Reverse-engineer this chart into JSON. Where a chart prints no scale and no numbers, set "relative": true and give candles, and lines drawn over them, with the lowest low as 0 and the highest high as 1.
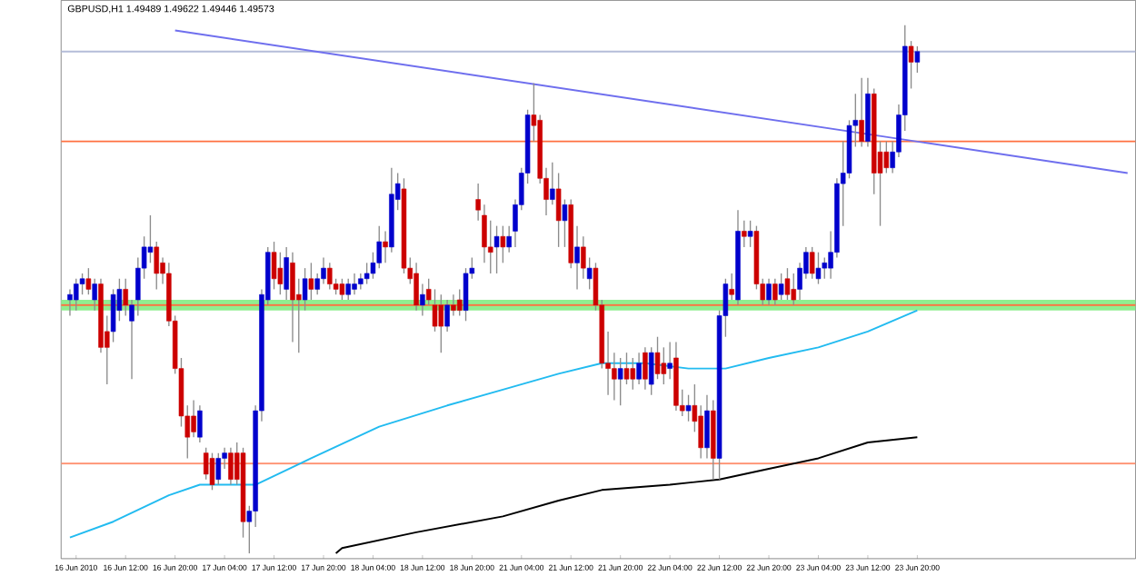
{
  "chart_data": {
    "type": "candlestick",
    "title": "GBPUSD,H1 1.49489 1.49622 1.49446 1.49573",
    "relative": true,
    "categories": [
      null,
      "16 Jun 2010",
      null,
      null,
      null,
      null,
      null,
      null,
      null,
      "16 Jun 12:00",
      null,
      null,
      null,
      null,
      null,
      null,
      null,
      "16 Jun 20:00",
      null,
      null,
      null,
      null,
      null,
      null,
      null,
      "17 Jun 04:00",
      null,
      null,
      null,
      null,
      null,
      null,
      null,
      "17 Jun 12:00",
      null,
      null,
      null,
      null,
      null,
      null,
      null,
      "17 Jun 20:00",
      null,
      null,
      null,
      null,
      null,
      null,
      null,
      "18 Jun 04:00",
      null,
      null,
      null,
      null,
      null,
      null,
      null,
      "18 Jun 12:00",
      null,
      null,
      null,
      null,
      null,
      null,
      null,
      "18 Jun 20:00",
      null,
      null,
      null,
      null,
      null,
      null,
      null,
      "21 Jun 04:00",
      null,
      null,
      null,
      null,
      null,
      null,
      null,
      "21 Jun 12:00",
      null,
      null,
      null,
      null,
      null,
      null,
      null,
      "21 Jun 20:00",
      null,
      null,
      null,
      null,
      null,
      null,
      null,
      "22 Jun 04:00",
      null,
      null,
      null,
      null,
      null,
      null,
      null,
      "22 Jun 12:00",
      null,
      null,
      null,
      null,
      null,
      null,
      null,
      "22 Jun 20:00",
      null,
      null,
      null,
      null,
      null,
      null,
      null,
      "23 Jun 04:00",
      null,
      null,
      null,
      null,
      null,
      null,
      null,
      "23 Jun 12:00",
      null,
      null,
      null,
      null,
      null,
      null,
      null,
      "23 Jun 20:00",
      null,
      null,
      null,
      null,
      null,
      null,
      null,
      null,
      null,
      null,
      null,
      null,
      null,
      null,
      null,
      null,
      null,
      null,
      null,
      null,
      null,
      null,
      null,
      null,
      null,
      null,
      null,
      null,
      null,
      null,
      null,
      null,
      null,
      null
    ],
    "colors": [
      "#0000cc",
      "#0000cc",
      "#0000cc",
      "#cc0000",
      "#0000cc",
      "#cc0000",
      "#cc0000",
      "#0000cc",
      "#0000cc",
      "#cc0000",
      "#0000cc",
      "#0000cc",
      "#0000cc",
      "#0000cc",
      "#cc0000",
      "#cc0000",
      "#cc0000",
      "#cc0000",
      "#cc0000",
      "#cc0000",
      "#cc0000",
      "#0000cc",
      "#cc0000",
      "#cc0000",
      "#0000cc",
      "#0000cc",
      "#cc0000",
      "#cc0000",
      "#cc0000",
      "#0000cc",
      "#0000cc",
      "#0000cc",
      "#0000cc",
      "#cc0000",
      "#cc0000",
      "#0000cc",
      "#cc0000",
      "#cc0000",
      "#0000cc",
      "#cc0000",
      "#0000cc",
      "#0000cc",
      "#cc0000",
      "#cc0000",
      "#cc0000",
      "#0000cc",
      "#0000cc",
      "#0000cc",
      "#0000cc",
      "#0000cc",
      "#0000cc",
      "#cc0000",
      "#0000cc",
      "#0000cc",
      "#cc0000",
      "#cc0000",
      "#cc0000",
      "#0000cc",
      "#cc0000",
      "#cc0000",
      "#cc0000",
      "#0000cc",
      "#cc0000",
      "#cc0000",
      "#0000cc",
      "#0000cc",
      "#cc0000",
      "#cc0000",
      "#cc0000",
      "#0000cc",
      "#cc0000",
      "#0000cc",
      "#0000cc",
      "#0000cc",
      "#0000cc",
      "#cc0000",
      "#cc0000",
      "#cc0000",
      "#0000cc",
      "#cc0000",
      "#0000cc",
      "#cc0000",
      "#0000cc",
      "#cc0000",
      "#0000cc",
      "#cc0000",
      "#cc0000",
      "#cc0000",
      "#cc0000",
      "#0000cc",
      "#cc0000",
      "#cc0000",
      "#0000cc",
      "#cc0000",
      "#0000cc",
      "#cc0000",
      "#cc0000",
      "#0000cc",
      "#cc0000",
      "#cc0000",
      "#0000cc",
      "#cc0000",
      "#cc0000",
      "#0000cc",
      "#cc0000",
      "#0000cc",
      "#0000cc",
      "#cc0000",
      "#0000cc",
      "#cc0000",
      "#0000cc",
      "#cc0000",
      "#cc0000",
      "#0000cc",
      "#cc0000",
      "#0000cc",
      "#cc0000",
      "#cc0000",
      "#0000cc",
      "#0000cc",
      "#cc0000",
      "#0000cc",
      "#0000cc",
      "#0000cc",
      "#0000cc",
      "#0000cc",
      "#0000cc",
      "#0000cc",
      "#cc0000",
      "#0000cc",
      "#cc0000",
      "#cc0000",
      "#cc0000",
      "#0000cc",
      "#0000cc",
      "#0000cc",
      "#cc0000",
      "#0000cc",
      null,
      null,
      null,
      null,
      null,
      null,
      null,
      null,
      null,
      null,
      null,
      null,
      null,
      null,
      null,
      null,
      null,
      null,
      null,
      null,
      null,
      null,
      null,
      null,
      null,
      null,
      null,
      null,
      null,
      null,
      null,
      null,
      null,
      null
    ],
    "ohlc": [
      [
        0.48,
        0.5,
        0.45,
        0.49
      ],
      [
        0.48,
        0.52,
        0.46,
        0.51
      ],
      [
        0.51,
        0.53,
        0.49,
        0.52
      ],
      [
        0.52,
        0.54,
        0.49,
        0.5
      ],
      [
        0.48,
        0.52,
        0.46,
        0.51
      ],
      [
        0.51,
        0.52,
        0.38,
        0.39
      ],
      [
        0.42,
        0.45,
        0.32,
        0.39
      ],
      [
        0.42,
        0.5,
        0.4,
        0.49
      ],
      [
        0.46,
        0.52,
        0.44,
        0.5
      ],
      [
        0.5,
        0.52,
        0.45,
        0.47
      ],
      [
        0.44,
        0.48,
        0.33,
        0.47
      ],
      [
        0.48,
        0.56,
        0.45,
        0.54
      ],
      [
        0.54,
        0.6,
        0.52,
        0.58
      ],
      [
        0.57,
        0.64,
        0.55,
        0.58
      ],
      [
        0.58,
        0.59,
        0.5,
        0.53
      ],
      [
        0.55,
        0.56,
        0.51,
        0.53
      ],
      [
        0.53,
        0.55,
        0.43,
        0.44
      ],
      [
        0.44,
        0.45,
        0.34,
        0.35
      ],
      [
        0.35,
        0.37,
        0.24,
        0.26
      ],
      [
        0.26,
        0.28,
        0.18,
        0.22
      ],
      [
        0.26,
        0.29,
        0.22,
        0.23
      ],
      [
        0.22,
        0.28,
        0.21,
        0.27
      ],
      [
        0.19,
        0.2,
        0.14,
        0.15
      ],
      [
        0.18,
        0.19,
        0.12,
        0.13
      ],
      [
        0.14,
        0.19,
        0.13,
        0.18
      ],
      [
        0.18,
        0.2,
        0.16,
        0.19
      ],
      [
        0.19,
        0.2,
        0.13,
        0.14
      ],
      [
        0.19,
        0.21,
        0.13,
        0.14
      ],
      [
        0.19,
        0.2,
        0.03,
        0.06
      ],
      [
        0.06,
        0.09,
        0,
        0.08
      ],
      [
        0.08,
        0.28,
        0.05,
        0.27
      ],
      [
        0.27,
        0.5,
        0.25,
        0.49
      ],
      [
        0.48,
        0.58,
        0.47,
        0.57
      ],
      [
        0.57,
        0.59,
        0.5,
        0.52
      ],
      [
        0.54,
        0.57,
        0.49,
        0.51
      ],
      [
        0.5,
        0.58,
        0.48,
        0.56
      ],
      [
        0.55,
        0.57,
        0.4,
        0.48
      ],
      [
        0.49,
        0.52,
        0.38,
        0.48
      ],
      [
        0.48,
        0.54,
        0.46,
        0.52
      ],
      [
        0.52,
        0.55,
        0.48,
        0.5
      ],
      [
        0.5,
        0.53,
        0.49,
        0.52
      ],
      [
        0.52,
        0.56,
        0.51,
        0.54
      ],
      [
        0.54,
        0.55,
        0.5,
        0.51
      ],
      [
        0.51,
        0.52,
        0.49,
        0.5
      ],
      [
        0.51,
        0.52,
        0.48,
        0.49
      ],
      [
        0.49,
        0.52,
        0.48,
        0.51
      ],
      [
        0.5,
        0.53,
        0.49,
        0.51
      ],
      [
        0.51,
        0.53,
        0.5,
        0.52
      ],
      [
        0.52,
        0.55,
        0.51,
        0.53
      ],
      [
        0.53,
        0.57,
        0.52,
        0.55
      ],
      [
        0.55,
        0.62,
        0.54,
        0.59
      ],
      [
        0.59,
        0.61,
        0.55,
        0.58
      ],
      [
        0.58,
        0.73,
        0.57,
        0.68
      ],
      [
        0.67,
        0.72,
        0.65,
        0.7
      ],
      [
        0.69,
        0.71,
        0.53,
        0.54
      ],
      [
        0.54,
        0.56,
        0.51,
        0.52
      ],
      [
        0.53,
        0.55,
        0.46,
        0.47
      ],
      [
        0.47,
        0.51,
        0.45,
        0.49
      ],
      [
        0.5,
        0.52,
        0.47,
        0.48
      ],
      [
        0.47,
        0.5,
        0.42,
        0.43
      ],
      [
        0.47,
        0.49,
        0.38,
        0.43
      ],
      [
        0.43,
        0.48,
        0.42,
        0.47
      ],
      [
        0.47,
        0.49,
        0.45,
        0.46
      ],
      [
        0.48,
        0.5,
        0.45,
        0.46
      ],
      [
        0.46,
        0.54,
        0.44,
        0.53
      ],
      [
        0.53,
        0.56,
        0.52,
        0.54
      ],
      [
        0.67,
        0.7,
        0.63,
        0.65
      ],
      [
        0.64,
        0.66,
        0.55,
        0.58
      ],
      [
        0.58,
        0.63,
        0.53,
        0.57
      ],
      [
        0.58,
        0.62,
        0.53,
        0.6
      ],
      [
        0.6,
        0.62,
        0.55,
        0.58
      ],
      [
        0.58,
        0.62,
        0.57,
        0.6
      ],
      [
        0.61,
        0.67,
        0.58,
        0.66
      ],
      [
        0.66,
        0.73,
        0.65,
        0.72
      ],
      [
        0.72,
        0.84,
        0.7,
        0.83
      ],
      [
        0.83,
        0.89,
        0.78,
        0.81
      ],
      [
        0.82,
        0.83,
        0.7,
        0.71
      ],
      [
        0.71,
        0.73,
        0.64,
        0.67
      ],
      [
        0.67,
        0.74,
        0.66,
        0.69
      ],
      [
        0.69,
        0.72,
        0.58,
        0.63
      ],
      [
        0.63,
        0.67,
        0.58,
        0.66
      ],
      [
        0.66,
        0.67,
        0.54,
        0.55
      ],
      [
        0.55,
        0.62,
        0.5,
        0.58
      ],
      [
        0.58,
        0.6,
        0.52,
        0.54
      ],
      [
        0.52,
        0.56,
        0.5,
        0.54
      ],
      [
        0.54,
        0.55,
        0.46,
        0.47
      ],
      [
        0.47,
        0.48,
        0.35,
        0.36
      ],
      [
        0.36,
        0.42,
        0.3,
        0.35
      ],
      [
        0.35,
        0.38,
        0.29,
        0.33
      ],
      [
        0.33,
        0.37,
        0.28,
        0.35
      ],
      [
        0.35,
        0.38,
        0.32,
        0.33
      ],
      [
        0.35,
        0.37,
        0.31,
        0.33
      ],
      [
        0.33,
        0.38,
        0.32,
        0.36
      ],
      [
        0.38,
        0.39,
        0.31,
        0.33
      ],
      [
        0.32,
        0.39,
        0.3,
        0.38
      ],
      [
        0.38,
        0.41,
        0.33,
        0.34
      ],
      [
        0.36,
        0.39,
        0.32,
        0.34
      ],
      [
        0.35,
        0.4,
        0.33,
        0.36
      ],
      [
        0.37,
        0.4,
        0.27,
        0.28
      ],
      [
        0.28,
        0.31,
        0.26,
        0.27
      ],
      [
        0.27,
        0.3,
        0.25,
        0.28
      ],
      [
        0.28,
        0.32,
        0.23,
        0.25
      ],
      [
        0.26,
        0.28,
        0.18,
        0.2
      ],
      [
        0.2,
        0.3,
        0.18,
        0.27
      ],
      [
        0.27,
        0.29,
        0.14,
        0.18
      ],
      [
        0.18,
        0.46,
        0.14,
        0.45
      ],
      [
        0.45,
        0.52,
        0.41,
        0.51
      ],
      [
        0.5,
        0.53,
        0.48,
        0.49
      ],
      [
        0.48,
        0.65,
        0.47,
        0.61
      ],
      [
        0.61,
        0.63,
        0.58,
        0.6
      ],
      [
        0.6,
        0.63,
        0.58,
        0.61
      ],
      [
        0.61,
        0.62,
        0.5,
        0.51
      ],
      [
        0.51,
        0.52,
        0.47,
        0.48
      ],
      [
        0.48,
        0.52,
        0.47,
        0.51
      ],
      [
        0.51,
        0.52,
        0.47,
        0.48
      ],
      [
        0.49,
        0.53,
        0.48,
        0.51
      ],
      [
        0.52,
        0.54,
        0.48,
        0.49
      ],
      [
        0.5,
        0.53,
        0.47,
        0.48
      ],
      [
        0.5,
        0.55,
        0.48,
        0.54
      ],
      [
        0.53,
        0.58,
        0.52,
        0.57
      ],
      [
        0.57,
        0.58,
        0.52,
        0.53
      ],
      [
        0.52,
        0.57,
        0.51,
        0.54
      ],
      [
        0.54,
        0.56,
        0.52,
        0.55
      ],
      [
        0.54,
        0.61,
        0.52,
        0.57
      ],
      [
        0.57,
        0.71,
        0.56,
        0.7
      ],
      [
        0.7,
        0.78,
        0.62,
        0.72
      ],
      [
        0.72,
        0.82,
        0.71,
        0.81
      ],
      [
        0.81,
        0.87,
        0.77,
        0.82
      ],
      [
        0.82,
        0.9,
        0.77,
        0.78
      ],
      [
        0.78,
        0.9,
        0.77,
        0.87
      ],
      [
        0.87,
        0.88,
        0.68,
        0.72
      ],
      [
        0.76,
        0.78,
        0.62,
        0.72
      ],
      [
        0.76,
        0.78,
        0.72,
        0.73
      ],
      [
        0.73,
        0.78,
        0.72,
        0.76
      ],
      [
        0.76,
        0.85,
        0.75,
        0.83
      ],
      [
        0.83,
        1,
        0.8,
        0.96
      ],
      [
        0.96,
        0.97,
        0.88,
        0.93
      ],
      [
        0.93,
        0.96,
        0.91,
        0.95
      ],
      null,
      null,
      null,
      null,
      null,
      null,
      null,
      null,
      null,
      null,
      null,
      null,
      null,
      null,
      null,
      null,
      null,
      null,
      null,
      null,
      null,
      null,
      null,
      null,
      null,
      null,
      null,
      null,
      null,
      null,
      null,
      null,
      null,
      null
    ],
    "series": [
      {
        "type": "line",
        "color": "#6f6fee",
        "values": [
          null,
          null,
          null,
          null,
          null,
          null,
          null,
          null,
          null,
          null,
          null,
          null,
          null,
          null,
          null,
          null,
          null,
          0.99,
          null,
          null,
          null,
          null,
          null,
          null,
          null,
          null,
          null,
          null,
          null,
          null,
          null,
          null,
          null,
          null,
          null,
          null,
          null,
          null,
          null,
          null,
          null,
          null,
          null,
          null,
          null,
          null,
          null,
          null,
          null,
          null,
          null,
          null,
          null,
          null,
          null,
          null,
          null,
          null,
          null,
          null,
          null,
          null,
          null,
          null,
          null,
          null,
          null,
          null,
          null,
          null,
          null,
          null,
          null,
          null,
          null,
          null,
          null,
          null,
          null,
          null,
          null,
          null,
          null,
          null,
          null,
          null,
          null,
          null,
          null,
          null,
          null,
          null,
          null,
          null,
          null,
          null,
          null,
          null,
          null,
          null,
          null,
          null,
          null,
          null,
          null,
          null,
          null,
          null,
          null,
          null,
          null,
          null,
          null,
          null,
          null,
          null,
          null,
          null,
          null,
          null,
          null,
          null,
          null,
          null,
          null,
          null,
          null,
          null,
          null,
          null,
          null,
          null,
          null,
          null,
          null,
          null,
          null,
          null,
          null,
          null,
          null,
          null,
          null,
          null,
          null,
          null,
          null,
          null,
          null,
          null,
          null,
          null,
          null,
          null,
          null,
          null,
          null,
          null,
          null,
          null,
          null,
          null,
          null,
          null,
          null,
          null,
          null,
          null,
          null,
          null,
          null,
          0.72
        ]
      },
      {
        "type": "line",
        "color": "#22bbf0",
        "values": [
          0.03,
          null,
          null,
          null,
          null,
          null,
          null,
          0.06,
          null,
          null,
          null,
          null,
          null,
          null,
          null,
          null,
          0.11,
          null,
          null,
          null,
          null,
          0.13,
          null,
          null,
          null,
          null,
          null,
          null,
          null,
          null,
          0.13,
          null,
          null,
          null,
          null,
          null,
          null,
          null,
          null,
          0.18,
          null,
          null,
          null,
          null,
          null,
          null,
          null,
          null,
          null,
          null,
          0.24,
          null,
          null,
          null,
          null,
          null,
          null,
          null,
          null,
          null,
          null,
          0.28,
          null,
          null,
          null,
          null,
          null,
          null,
          null,
          null,
          0.31,
          null,
          null,
          null,
          null,
          null,
          null,
          null,
          null,
          0.34,
          null,
          null,
          null,
          null,
          null,
          null,
          0.36,
          null,
          null,
          null,
          null,
          null,
          null,
          0.36,
          null,
          null,
          null,
          null,
          null,
          null,
          0.35,
          null,
          null,
          null,
          null,
          null,
          0.35,
          null,
          null,
          null,
          null,
          null,
          null,
          0.37,
          null,
          null,
          null,
          null,
          null,
          null,
          null,
          0.39,
          null,
          null,
          null,
          null,
          null,
          null,
          null,
          0.42,
          null,
          null,
          null,
          null,
          null,
          null,
          null,
          0.46,
          null,
          null,
          null,
          null,
          null,
          null,
          null,
          null,
          null,
          null,
          null,
          null,
          null,
          null,
          null,
          null,
          null,
          null,
          null,
          null,
          null,
          null,
          null,
          null,
          null,
          null,
          null,
          null,
          null,
          null,
          null,
          null,
          null,
          null
        ]
      },
      {
        "type": "line",
        "color": "#000000",
        "values": [
          null,
          null,
          null,
          null,
          null,
          null,
          null,
          null,
          null,
          null,
          null,
          null,
          null,
          null,
          null,
          null,
          null,
          null,
          null,
          null,
          null,
          null,
          null,
          null,
          null,
          null,
          null,
          null,
          null,
          null,
          null,
          null,
          null,
          null,
          null,
          null,
          null,
          null,
          null,
          null,
          null,
          null,
          null,
          0.0,
          0.01,
          null,
          null,
          null,
          null,
          null,
          null,
          null,
          null,
          null,
          null,
          null,
          0.04,
          null,
          null,
          null,
          null,
          null,
          null,
          null,
          null,
          null,
          null,
          null,
          null,
          null,
          0.07,
          null,
          null,
          null,
          null,
          null,
          null,
          null,
          null,
          0.1,
          null,
          null,
          null,
          null,
          null,
          null,
          0.12,
          null,
          null,
          null,
          null,
          null,
          null,
          null,
          null,
          null,
          null,
          0.13,
          null,
          null,
          null,
          null,
          null,
          null,
          null,
          0.14,
          null,
          null,
          null,
          null,
          null,
          null,
          null,
          0.16,
          null,
          null,
          null,
          null,
          null,
          null,
          null,
          0.18,
          null,
          null,
          null,
          null,
          null,
          null,
          null,
          0.21,
          null,
          null,
          null,
          null,
          null,
          null,
          null,
          0.22,
          null,
          null,
          null,
          null,
          null,
          null,
          null,
          null,
          null,
          null,
          null,
          null,
          null,
          null,
          null,
          null,
          null,
          null,
          null,
          null,
          null,
          null,
          null,
          null,
          null,
          null,
          null,
          null,
          null,
          null,
          null,
          null,
          null,
          null
        ]
      }
    ],
    "ref_lines": [
      {
        "axis": "y",
        "value": 0.95,
        "color": "#b4bcd8"
      },
      {
        "axis": "y",
        "value": 0.78,
        "color": "#ff7040"
      },
      {
        "axis": "y",
        "value": 0.47,
        "color": "#ff7040"
      },
      {
        "axis": "y",
        "value": 0.17,
        "color": "#ff9070"
      }
    ],
    "bands": [
      {
        "axis": "y",
        "from": 0.46,
        "to": 0.48,
        "color": "#90ee90"
      }
    ]
  }
}
